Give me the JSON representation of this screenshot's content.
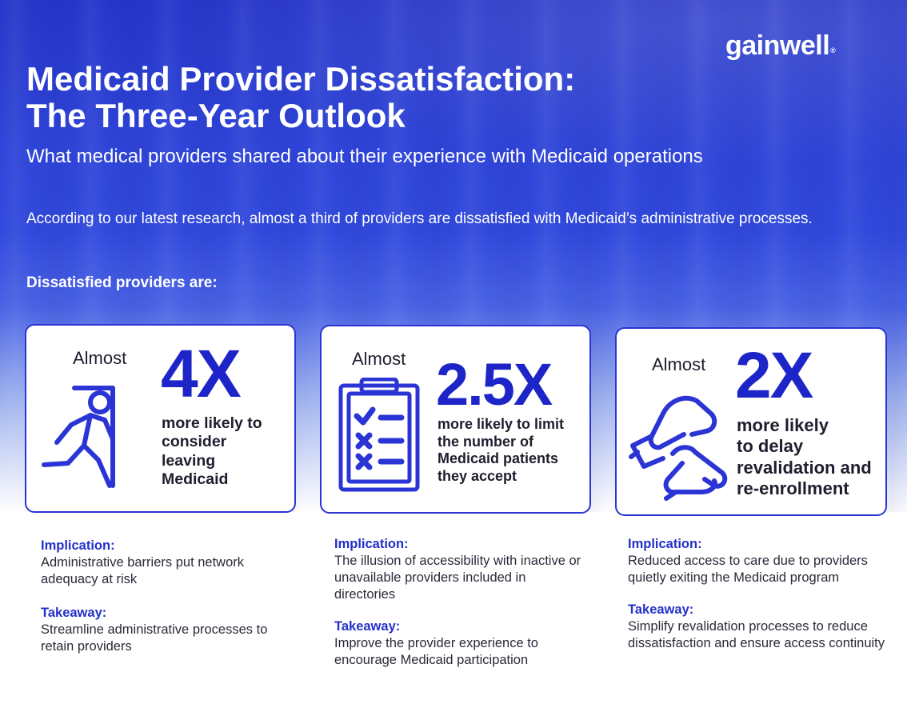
{
  "brand": {
    "logo_text": "gainwell",
    "reg_mark": "®"
  },
  "header": {
    "title": "Medicaid Provider Dissatisfaction:\nThe Three-Year Outlook",
    "subtitle": "What medical providers shared about their experience with Medicaid operations"
  },
  "intro": "According to our latest research, almost a third of providers are dissatisfied with Medicaid’s administrative processes.",
  "lead": "Dissatisfied providers are:",
  "cards": [
    {
      "almost": "Almost",
      "stat": "4X",
      "description": "more likely to\nconsider\nleaving\nMedicaid",
      "icon": "person-exiting-door-icon",
      "implication_label": "Implication:",
      "implication": "Administrative barriers put network adequacy at risk",
      "takeaway_label": "Takeaway:",
      "takeaway": "Streamline administrative processes to retain providers"
    },
    {
      "almost": "Almost",
      "stat": "2.5X",
      "description": "more likely to limit\nthe number of\nMedicaid patients\nthey accept",
      "icon": "checklist-clipboard-icon",
      "implication_label": "Implication:",
      "implication": "The illusion of accessibility with inactive or unavailable providers included in directories",
      "takeaway_label": "Takeaway:",
      "takeaway": "Improve the provider experience to encourage Medicaid participation"
    },
    {
      "almost": "Almost",
      "stat": "2X",
      "description": "more likely\nto delay\nrevalidation and\nre-enrollment",
      "icon": "hand-signing-icon",
      "implication_label": "Implication:",
      "implication": "Reduced access to care due to providers quietly exiting the Medicaid program",
      "takeaway_label": "Takeaway:",
      "takeaway": "Simplify revalidation processes to reduce dissatisfaction and ensure access continuity"
    }
  ],
  "colors": {
    "brand_blue": "#2b34d4",
    "hero_blue": "#2f45d8",
    "label_blue": "#2330c8"
  }
}
